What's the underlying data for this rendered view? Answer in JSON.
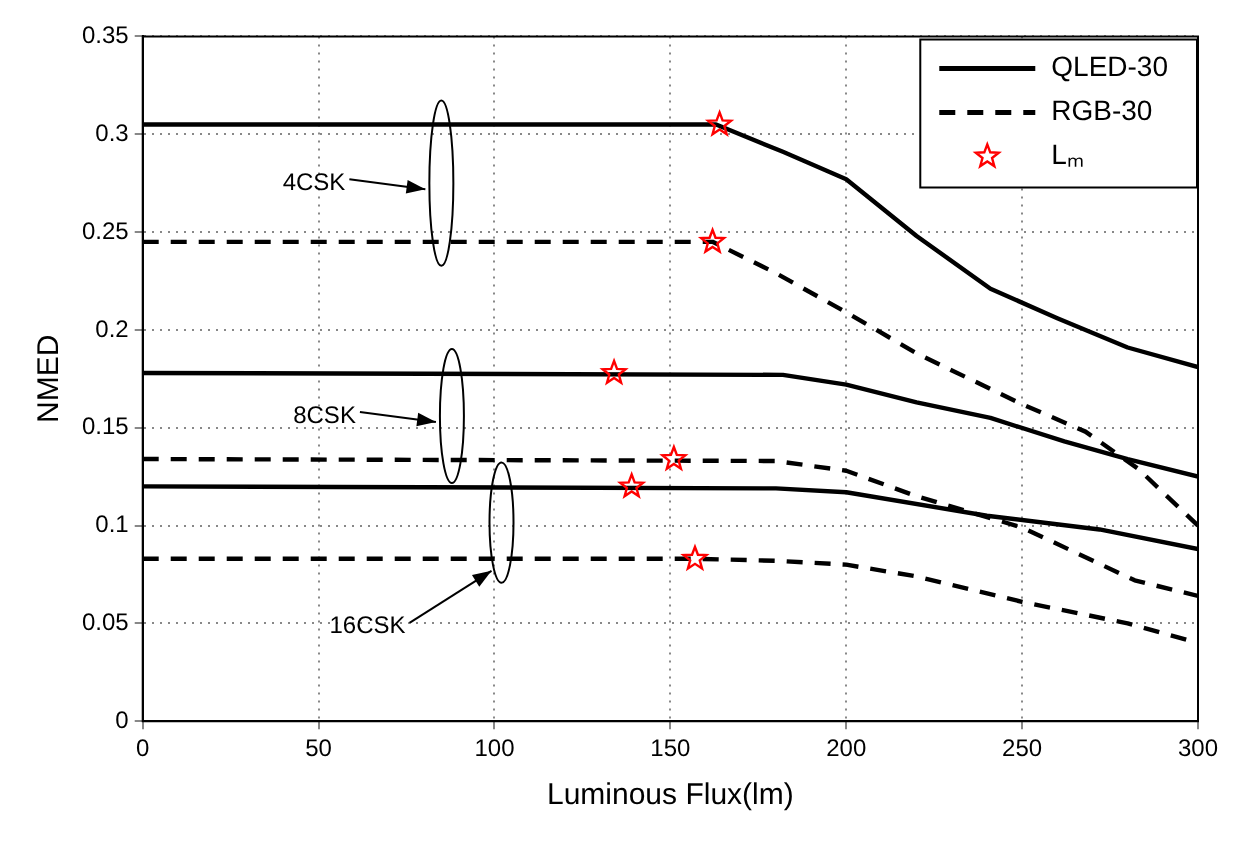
{
  "chart_data": {
    "type": "line",
    "xlabel": "Luminous Flux(lm)",
    "ylabel": "NMED",
    "xlim": [
      0,
      300
    ],
    "ylim": [
      0,
      0.35
    ],
    "xticks": [
      0,
      50,
      100,
      150,
      200,
      250,
      300
    ],
    "yticks": [
      0,
      0.05,
      0.1,
      0.15,
      0.2,
      0.25,
      0.3,
      0.35
    ],
    "grid": true,
    "legend": "top right",
    "marker": "none",
    "series": [
      {
        "name": "QLED-30",
        "color": "#000000",
        "line_style": "solid",
        "x": [
          0,
          163,
          182,
          200,
          220,
          241,
          260,
          280,
          300
        ],
        "values": [
          0.305,
          0.305,
          0.291,
          0.277,
          0.248,
          0.221,
          0.206,
          0.191,
          0.181
        ]
      },
      {
        "name": "RGB-30",
        "color": "#000000",
        "line_style": "dashed",
        "x": [
          0,
          162,
          180,
          200,
          220,
          250,
          268,
          283,
          300
        ],
        "values": [
          0.245,
          0.245,
          0.229,
          0.209,
          0.188,
          0.162,
          0.148,
          0.129,
          0.1
        ]
      },
      {
        "color": "#000000",
        "line_style": "solid",
        "x": [
          0,
          182,
          200,
          220,
          241,
          262,
          280,
          300
        ],
        "values": [
          0.178,
          0.177,
          0.172,
          0.163,
          0.155,
          0.143,
          0.134,
          0.125
        ]
      },
      {
        "color": "#000000",
        "line_style": "dashed",
        "x": [
          0,
          180,
          200,
          220,
          250,
          282,
          300
        ],
        "values": [
          0.134,
          0.133,
          0.128,
          0.115,
          0.099,
          0.072,
          0.064
        ]
      },
      {
        "color": "#000000",
        "line_style": "solid",
        "x": [
          0,
          180,
          200,
          240,
          272,
          300
        ],
        "values": [
          0.12,
          0.119,
          0.117,
          0.105,
          0.098,
          0.088
        ]
      },
      {
        "color": "#000000",
        "line_style": "dashed",
        "x": [
          0,
          157,
          180,
          200,
          220,
          250,
          280,
          300
        ],
        "values": [
          0.083,
          0.083,
          0.082,
          0.08,
          0.074,
          0.061,
          0.05,
          0.04
        ]
      },
      {
        "name": "Lₘ",
        "type": "scatter",
        "color": "#ff0000",
        "marker": "star",
        "x": [
          164,
          162,
          134,
          151,
          139,
          157
        ],
        "values": [
          0.305,
          0.245,
          0.178,
          0.134,
          0.12,
          0.083
        ]
      }
    ],
    "annotations": [
      "4CSK",
      "8CSK",
      "16CSK"
    ]
  }
}
